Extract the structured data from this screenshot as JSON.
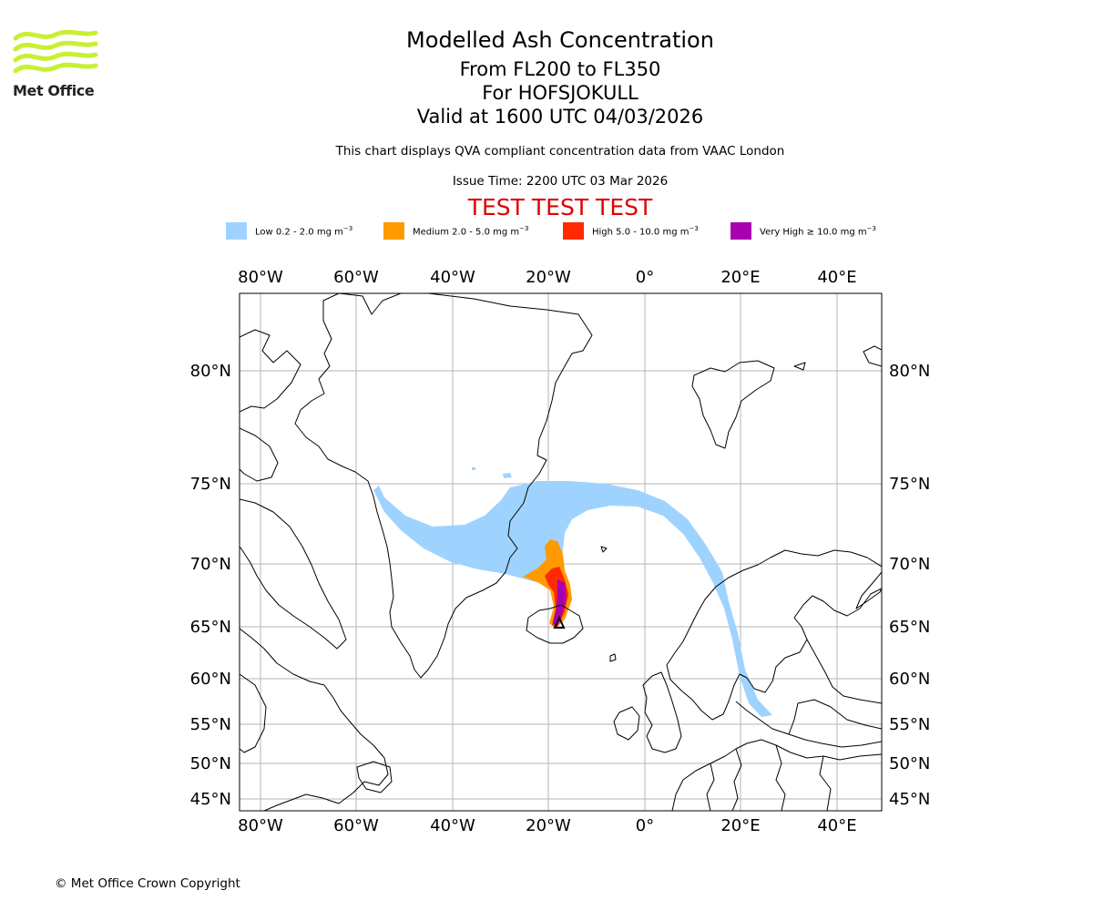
{
  "branding": {
    "organisation": "Met Office",
    "logo_color": "#c8f032",
    "copyright": "© Met Office Crown Copyright"
  },
  "header": {
    "title": "Modelled Ash Concentration",
    "levels": "From FL200 to FL350",
    "volcano": "For HOFSJOKULL",
    "valid": "Valid at 1600 UTC 04/03/2026",
    "description": "This chart displays QVA compliant concentration data from VAAC London",
    "issue_time": "Issue Time: 2200 UTC 03 Mar 2026",
    "test_banner": "TEST TEST TEST",
    "test_color": "#e00000"
  },
  "legend": [
    {
      "label": "Low 0.2 - 2.0 mg m",
      "unit_sup": "−3",
      "color": "#9fd3ff"
    },
    {
      "label": "Medium 2.0 - 5.0 mg m",
      "unit_sup": "−3",
      "color": "#ff9a00"
    },
    {
      "label": "High 5.0 - 10.0 mg m",
      "unit_sup": "−3",
      "color": "#ff2a00"
    },
    {
      "label": "Very High ≥ 10.0 mg m",
      "unit_sup": "−3",
      "color": "#a800b0"
    }
  ],
  "map": {
    "lon_ticks": [
      "80°W",
      "60°W",
      "40°W",
      "20°W",
      "0°",
      "20°E",
      "40°E"
    ],
    "lat_ticks": [
      "80°N",
      "75°N",
      "70°N",
      "65°N",
      "60°N",
      "55°N",
      "50°N",
      "45°N"
    ],
    "lon_range": [
      -84.5,
      49
    ],
    "lat_range": [
      43.5,
      83
    ],
    "volcano_marker": {
      "lon": -18.9,
      "lat": 64.8
    }
  }
}
